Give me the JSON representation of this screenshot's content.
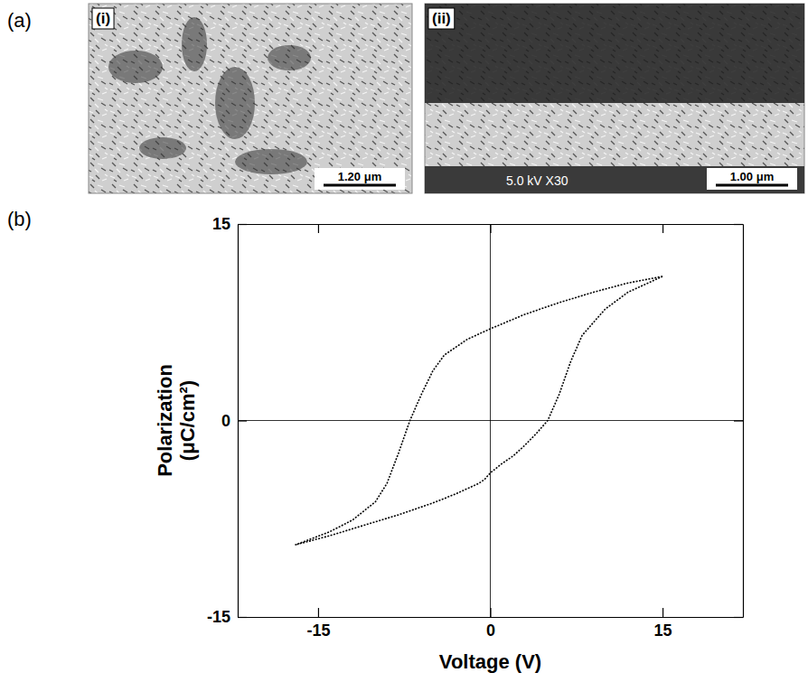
{
  "figure": {
    "panels": [
      {
        "label": "(a)",
        "images": [
          {
            "label": "(i)",
            "scale_bar": "1.20 μm"
          },
          {
            "label": "(ii)",
            "scale_bar": "1.00 μm",
            "caption": "5.0 kV X30"
          }
        ]
      },
      {
        "label": "(b)"
      }
    ]
  },
  "chart_data": {
    "type": "line",
    "x_label": "Voltage (V)",
    "y_label": "Polarization (μC/cm²)",
    "x": [
      15,
      12,
      9,
      6,
      3,
      0,
      -2,
      -4,
      -5,
      -6,
      -7,
      -8,
      -9,
      -10,
      -12,
      -14,
      -17,
      -14,
      -11,
      -8,
      -5,
      -3,
      -1,
      -0.5,
      0,
      1,
      2,
      3,
      4,
      5,
      6,
      7,
      8,
      10,
      12,
      15
    ],
    "series": [
      {
        "color": "#000000",
        "line_style": "dotted",
        "values": [
          11,
          10.5,
          9.8,
          9,
          8.1,
          7,
          6.2,
          5,
          3.8,
          2,
          0,
          -2.5,
          -4.8,
          -6.2,
          -7.6,
          -8.5,
          -9.5,
          -8.8,
          -8,
          -7.2,
          -6.3,
          -5.6,
          -4.8,
          -4.5,
          -4,
          -3.3,
          -2.7,
          -1.9,
          -1,
          0,
          2,
          4.5,
          6.5,
          8.5,
          9.8,
          11
        ]
      }
    ],
    "xlim": [
      -22,
      22
    ],
    "ylim": [
      -15,
      15
    ],
    "xticks": [
      -15,
      0,
      15
    ],
    "yticks": [
      -15,
      0,
      15
    ],
    "grid": false
  }
}
